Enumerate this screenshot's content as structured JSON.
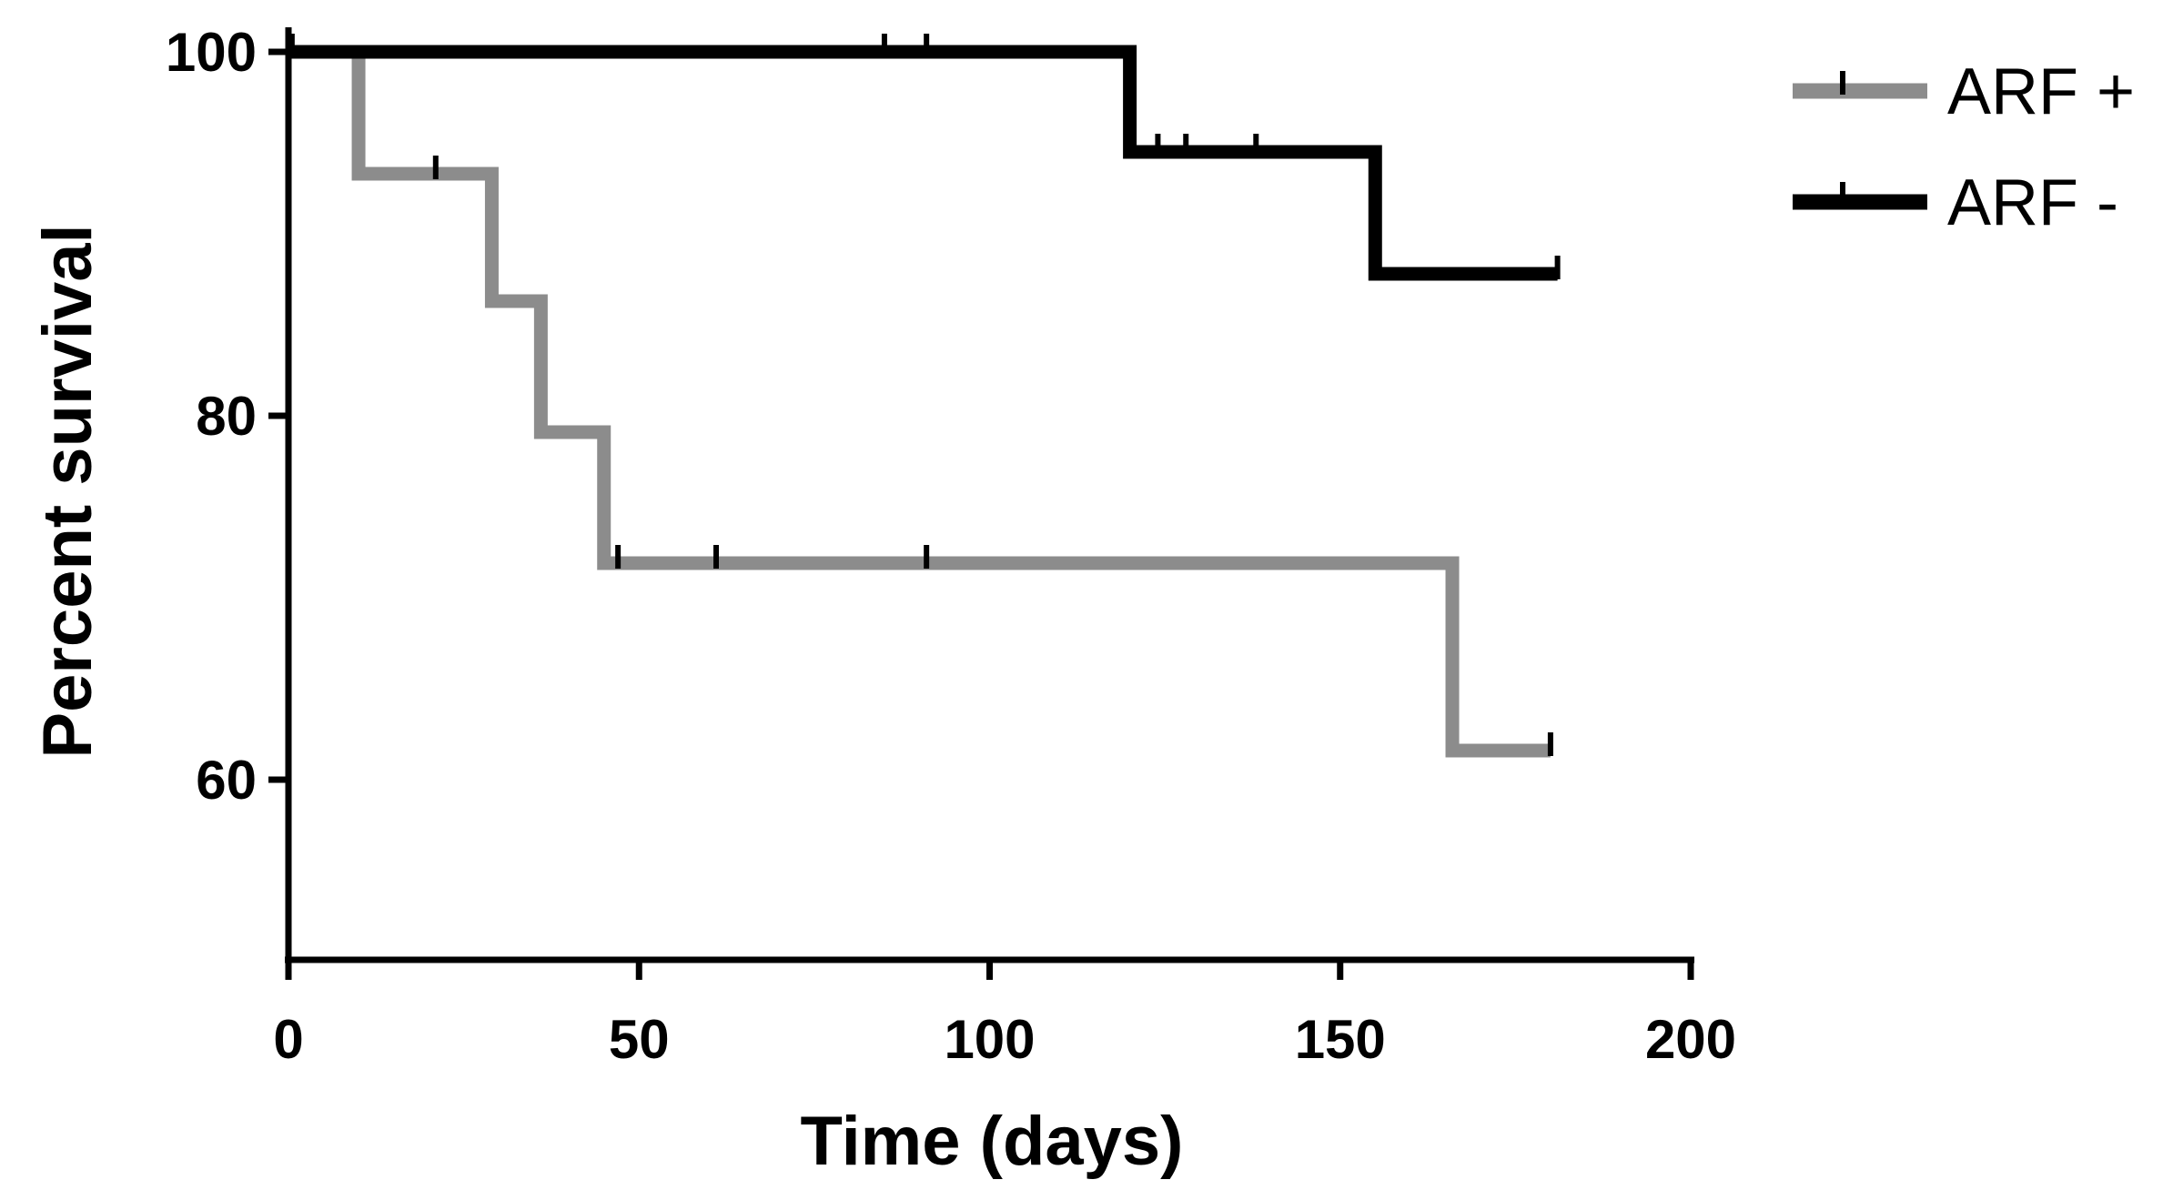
{
  "chart_data": {
    "type": "line",
    "step": true,
    "title": "",
    "xlabel": "Time (days)",
    "ylabel": "Percent survival",
    "xlim": [
      0,
      200
    ],
    "ylim": [
      50,
      100
    ],
    "xticks": [
      0,
      50,
      100,
      150,
      200
    ],
    "yticks": [
      60,
      80,
      100
    ],
    "x_tick_labels": [
      "0",
      "50",
      "100",
      "150",
      "200"
    ],
    "y_tick_labels": [
      "60",
      "80",
      "100"
    ],
    "grid": false,
    "legend_position": "top-right",
    "series": [
      {
        "name": "ARF +",
        "color": "#8c8c8c",
        "steps": [
          {
            "x": 0,
            "y": 100
          },
          {
            "x": 10,
            "y": 93.3
          },
          {
            "x": 29,
            "y": 86.3
          },
          {
            "x": 36,
            "y": 79.1
          },
          {
            "x": 45,
            "y": 71.9
          },
          {
            "x": 166,
            "y": 61.6
          },
          {
            "x": 180,
            "y": 61.6
          }
        ],
        "censored": [
          {
            "x": 21,
            "y": 93.3
          },
          {
            "x": 47,
            "y": 71.9
          },
          {
            "x": 61,
            "y": 71.9
          },
          {
            "x": 91,
            "y": 71.9
          },
          {
            "x": 180,
            "y": 61.6
          }
        ]
      },
      {
        "name": "ARF -",
        "color": "#000000",
        "steps": [
          {
            "x": 0,
            "y": 100
          },
          {
            "x": 120,
            "y": 94.5
          },
          {
            "x": 155,
            "y": 87.8
          },
          {
            "x": 181,
            "y": 87.8
          }
        ],
        "censored": [
          {
            "x": 0.5,
            "y": 100
          },
          {
            "x": 85,
            "y": 100
          },
          {
            "x": 91,
            "y": 100
          },
          {
            "x": 124,
            "y": 94.5
          },
          {
            "x": 128,
            "y": 94.5
          },
          {
            "x": 138,
            "y": 94.5
          },
          {
            "x": 181,
            "y": 87.8
          }
        ]
      }
    ]
  }
}
